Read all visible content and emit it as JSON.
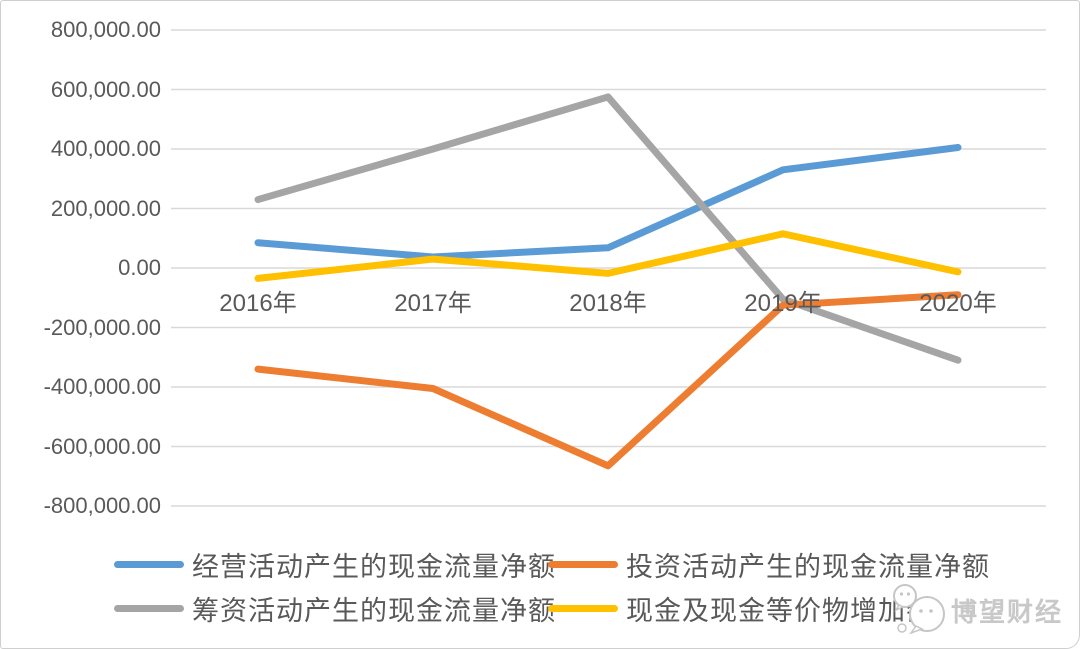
{
  "frame": {
    "background": "#ffffff",
    "border_color": "#cfcfcf"
  },
  "chart_data": {
    "type": "line",
    "title": "",
    "xlabel": "",
    "ylabel": "",
    "categories": [
      "2016年",
      "2017年",
      "2018年",
      "2019年",
      "2020年"
    ],
    "series": [
      {
        "name": "经营活动产生的现金流量净额",
        "color": "#5B9BD5",
        "values": [
          85000,
          37000,
          68000,
          330000,
          405000
        ]
      },
      {
        "name": "投资活动产生的现金流量净额",
        "color": "#ED7D31",
        "values": [
          -340000,
          -405000,
          -665000,
          -125000,
          -90000
        ]
      },
      {
        "name": "筹资活动产生的现金流量净额",
        "color": "#A5A5A5",
        "values": [
          230000,
          400000,
          575000,
          -105000,
          -310000
        ]
      },
      {
        "name": "现金及现金等价物增加额",
        "color": "#FFC000",
        "values": [
          -35000,
          30000,
          -18000,
          115000,
          -13000
        ]
      }
    ],
    "y_axis": {
      "min": -800000,
      "max": 800000,
      "step": 200000,
      "tick_values": [
        800000,
        600000,
        400000,
        200000,
        0,
        -200000,
        -400000,
        -600000,
        -800000
      ],
      "tick_labels": [
        "800,000.00",
        "600,000.00",
        "400,000.00",
        "200,000.00",
        "0.00",
        "-200,000.00",
        "-400,000.00",
        "-600,000.00",
        "-800,000.00"
      ]
    },
    "grid": true,
    "gridline_color": "#D9D9D9",
    "label_color": "#595959",
    "legend_position": "bottom"
  },
  "watermark": {
    "text": "博望财经",
    "icon": "chat-bubbles-logo",
    "color": "#c8c8c8"
  }
}
